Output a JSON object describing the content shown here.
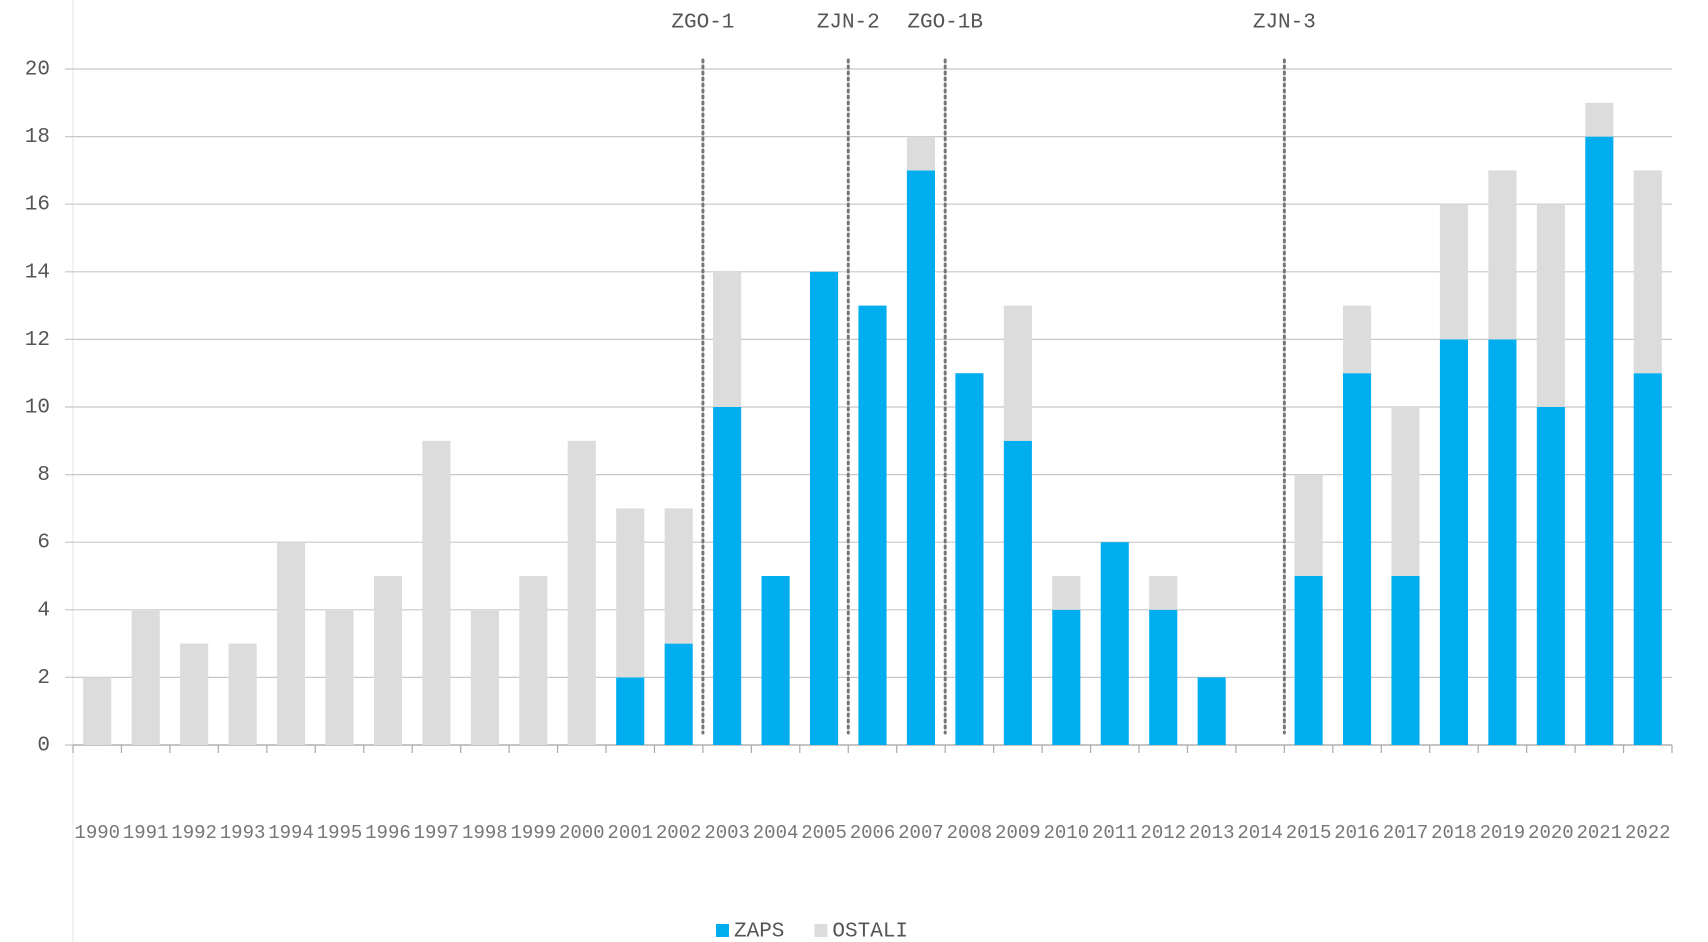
{
  "chart_data": {
    "type": "stacked_bar",
    "categories": [
      "1990",
      "1991",
      "1992",
      "1993",
      "1994",
      "1995",
      "1996",
      "1997",
      "1998",
      "1999",
      "2000",
      "2001",
      "2002",
      "2003",
      "2004",
      "2005",
      "2006",
      "2007",
      "2008",
      "2009",
      "2010",
      "2011",
      "2012",
      "2013",
      "2014",
      "2015",
      "2016",
      "2017",
      "2018",
      "2019",
      "2020",
      "2021",
      "2022"
    ],
    "series": [
      {
        "name": "ZAPS",
        "color": "#00aeef",
        "values": [
          0,
          0,
          0,
          0,
          0,
          0,
          0,
          0,
          0,
          0,
          0,
          2,
          3,
          10,
          5,
          14,
          13,
          17,
          11,
          9,
          4,
          6,
          4,
          2,
          0,
          5,
          11,
          5,
          12,
          12,
          10,
          18,
          11
        ]
      },
      {
        "name": "OSTALI",
        "color": "#dcdcdc",
        "values": [
          2,
          4,
          3,
          3,
          6,
          4,
          5,
          9,
          4,
          5,
          9,
          5,
          4,
          4,
          0,
          0,
          0,
          1,
          0,
          4,
          1,
          0,
          1,
          0,
          0,
          3,
          2,
          5,
          4,
          5,
          6,
          1,
          6
        ]
      }
    ],
    "ylim": [
      0,
      20
    ],
    "yticks": [
      0,
      2,
      4,
      6,
      8,
      10,
      12,
      14,
      16,
      18,
      20
    ],
    "grid": true,
    "annotations": [
      {
        "label": "ZGO-1",
        "after": "2002"
      },
      {
        "label": "ZJN-2",
        "after": "2005"
      },
      {
        "label": "ZGO-1B",
        "after": "2007"
      },
      {
        "label": "ZJN-3",
        "after": "2014"
      }
    ]
  }
}
